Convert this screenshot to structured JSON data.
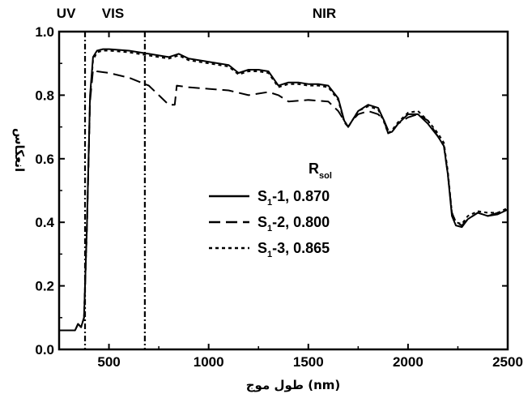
{
  "chart_data": {
    "type": "line",
    "title": "",
    "xlabel": "طول موج (nm)",
    "ylabel": "انعکاس",
    "xlim": [
      250,
      2500
    ],
    "ylim": [
      0,
      1.0
    ],
    "x_ticks": [
      500,
      1000,
      1500,
      2000,
      2500
    ],
    "y_ticks": [
      0.0,
      0.2,
      0.4,
      0.6,
      0.8,
      1.0
    ],
    "y_tick_labels": [
      "0.0",
      "0.2",
      "0.4",
      "0.6",
      "0.8",
      "1.0"
    ],
    "grid": false,
    "legend_position": "center",
    "legend_title_main": "R",
    "legend_title_sub": "sol",
    "region_boundaries": [
      380,
      680
    ],
    "regions": [
      {
        "label": "UV",
        "x": 285
      },
      {
        "label": "VIS",
        "x": 520
      },
      {
        "label": "NIR",
        "x": 1580
      }
    ],
    "series": [
      {
        "name": "S1-1, 0.870",
        "label_main": "S",
        "label_sub": "1",
        "label_rest": "-1, 0.870",
        "style": "solid",
        "x": [
          250,
          300,
          330,
          345,
          360,
          375,
          390,
          405,
          420,
          440,
          470,
          500,
          600,
          700,
          800,
          850,
          900,
          1000,
          1100,
          1150,
          1200,
          1250,
          1300,
          1350,
          1400,
          1450,
          1500,
          1550,
          1600,
          1650,
          1680,
          1700,
          1720,
          1750,
          1800,
          1850,
          1880,
          1900,
          1920,
          1950,
          2000,
          2050,
          2100,
          2150,
          2180,
          2200,
          2220,
          2240,
          2270,
          2300,
          2350,
          2400,
          2450,
          2500
        ],
        "y": [
          0.06,
          0.06,
          0.06,
          0.08,
          0.07,
          0.1,
          0.4,
          0.8,
          0.92,
          0.94,
          0.945,
          0.945,
          0.94,
          0.93,
          0.92,
          0.93,
          0.915,
          0.905,
          0.895,
          0.87,
          0.88,
          0.88,
          0.875,
          0.83,
          0.84,
          0.84,
          0.835,
          0.835,
          0.83,
          0.79,
          0.72,
          0.7,
          0.72,
          0.75,
          0.77,
          0.76,
          0.72,
          0.68,
          0.685,
          0.71,
          0.74,
          0.74,
          0.71,
          0.67,
          0.64,
          0.55,
          0.42,
          0.39,
          0.385,
          0.41,
          0.43,
          0.42,
          0.425,
          0.44
        ]
      },
      {
        "name": "S1-2, 0.800",
        "label_main": "S",
        "label_sub": "1",
        "label_rest": "-2, 0.800",
        "style": "dashed",
        "x": [
          250,
          300,
          330,
          345,
          360,
          375,
          390,
          405,
          420,
          440,
          500,
          600,
          700,
          750,
          800,
          830,
          840,
          900,
          1000,
          1100,
          1200,
          1300,
          1350,
          1400,
          1500,
          1600,
          1650,
          1680,
          1700,
          1720,
          1750,
          1800,
          1850,
          1880,
          1900,
          1920,
          1950,
          2000,
          2050,
          2100,
          2150,
          2180,
          2200,
          2220,
          2240,
          2270,
          2300,
          2350,
          2400,
          2450,
          2500
        ],
        "y": [
          0.06,
          0.06,
          0.06,
          0.08,
          0.07,
          0.1,
          0.4,
          0.78,
          0.88,
          0.875,
          0.87,
          0.855,
          0.83,
          0.8,
          0.77,
          0.77,
          0.83,
          0.825,
          0.82,
          0.815,
          0.8,
          0.81,
          0.8,
          0.78,
          0.785,
          0.78,
          0.75,
          0.72,
          0.7,
          0.72,
          0.74,
          0.75,
          0.74,
          0.72,
          0.69,
          0.685,
          0.71,
          0.73,
          0.74,
          0.72,
          0.67,
          0.64,
          0.55,
          0.43,
          0.4,
          0.39,
          0.41,
          0.43,
          0.42,
          0.43,
          0.44
        ]
      },
      {
        "name": "S1-3, 0.865",
        "label_main": "S",
        "label_sub": "1",
        "label_rest": "-3, 0.865",
        "style": "dotted",
        "x": [
          250,
          300,
          330,
          345,
          360,
          375,
          390,
          405,
          420,
          440,
          470,
          500,
          600,
          700,
          800,
          850,
          900,
          1000,
          1100,
          1150,
          1200,
          1250,
          1300,
          1350,
          1400,
          1450,
          1500,
          1550,
          1600,
          1650,
          1680,
          1700,
          1720,
          1750,
          1800,
          1850,
          1880,
          1900,
          1920,
          1950,
          2000,
          2050,
          2100,
          2150,
          2180,
          2200,
          2220,
          2240,
          2270,
          2300,
          2350,
          2400,
          2450,
          2500
        ],
        "y": [
          0.06,
          0.06,
          0.06,
          0.08,
          0.07,
          0.1,
          0.4,
          0.79,
          0.91,
          0.935,
          0.94,
          0.94,
          0.935,
          0.925,
          0.915,
          0.925,
          0.91,
          0.9,
          0.89,
          0.865,
          0.875,
          0.875,
          0.87,
          0.825,
          0.835,
          0.835,
          0.83,
          0.83,
          0.825,
          0.785,
          0.715,
          0.7,
          0.72,
          0.75,
          0.765,
          0.755,
          0.715,
          0.68,
          0.69,
          0.715,
          0.745,
          0.75,
          0.72,
          0.68,
          0.65,
          0.56,
          0.43,
          0.4,
          0.395,
          0.42,
          0.435,
          0.43,
          0.43,
          0.445
        ]
      }
    ]
  }
}
